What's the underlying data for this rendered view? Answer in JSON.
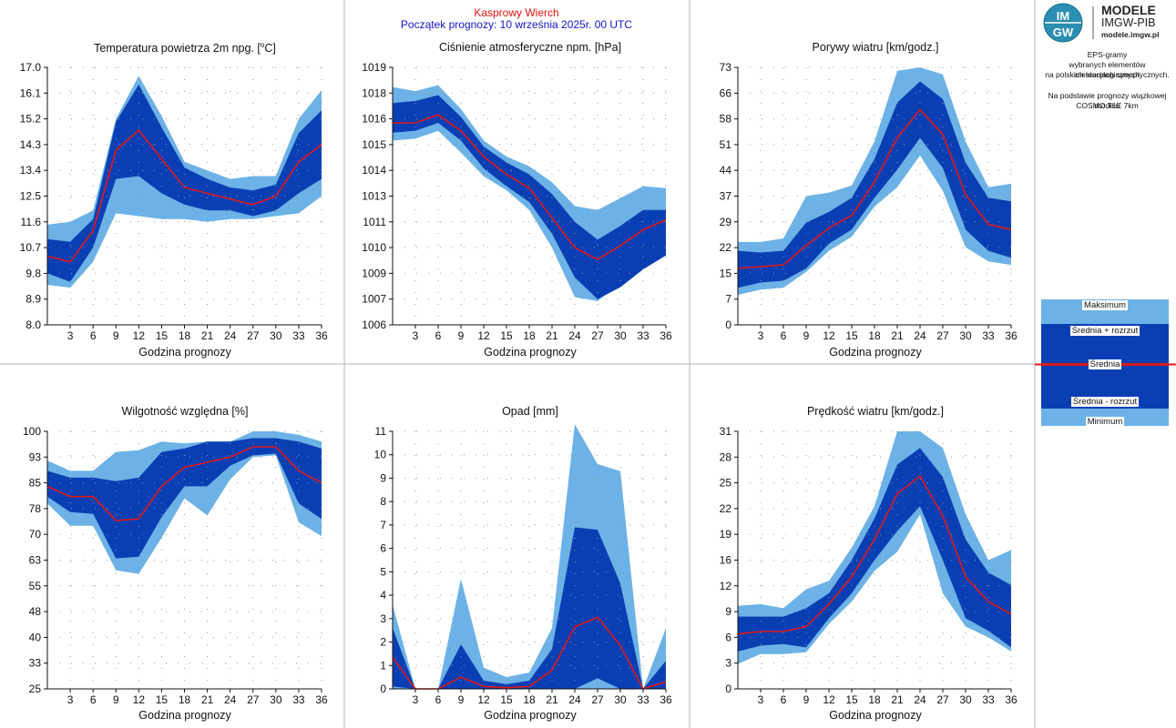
{
  "header": {
    "station": "Kasprowy Wierch",
    "forecast_start": "Początek prognozy: 10 września 2025r. 00 UTC"
  },
  "logo": {
    "brand": "IMGW",
    "line1": "MODELE",
    "line2": "IMGW-PIB",
    "url": "modele.imgw.pl"
  },
  "description": {
    "line1": "EPS-gramy",
    "line2": "wybranych elementów meteorologicznych",
    "line3": "na polskich stacjach synoptycznych.",
    "line4": "Na podstawie prognozy wiązkowej modelu",
    "line5": "COSMO TLE 7km"
  },
  "legend": {
    "max": "Maksimum",
    "mean_plus": "Średnia + rozrzut",
    "mean": "Średnia",
    "mean_minus": "Średnia - rozrzut",
    "min": "Minimum"
  },
  "colors": {
    "outer_band": "#6cb2e6",
    "inner_band": "#0a3fb4",
    "mean_line": "#e01818",
    "grid_dots": "#9a9a9a",
    "panel_border": "#b4b4b4"
  },
  "chart_data": [
    {
      "type": "area",
      "title": "Temperatura powietrza 2m npg. [°C]",
      "title_main": "Temperatura powietrza 2m npg. [",
      "title_sup": "o",
      "title_tail": "C]",
      "xlabel": "Godzina prognozy",
      "x": [
        0,
        3,
        6,
        9,
        12,
        15,
        18,
        21,
        24,
        27,
        30,
        33,
        36
      ],
      "xticks": [
        3,
        6,
        9,
        12,
        15,
        18,
        21,
        24,
        27,
        30,
        33,
        36
      ],
      "ylim": [
        8.0,
        17.0
      ],
      "yticks": [
        "8.0",
        "8.9",
        "9.8",
        "10.7",
        "11.6",
        "12.5",
        "13.4",
        "14.3",
        "15.2",
        "16.1",
        "17.0"
      ],
      "series": [
        {
          "name": "Maksimum",
          "values": [
            11.5,
            11.6,
            12.0,
            15.2,
            16.7,
            15.3,
            13.7,
            13.4,
            13.1,
            13.2,
            13.2,
            15.2,
            16.2
          ]
        },
        {
          "name": "Średnia + rozrzut",
          "values": [
            11.0,
            10.9,
            11.7,
            15.1,
            16.4,
            14.9,
            13.5,
            13.1,
            12.8,
            12.7,
            12.9,
            14.7,
            15.5
          ]
        },
        {
          "name": "Średnia",
          "values": [
            10.4,
            10.2,
            11.3,
            14.1,
            14.8,
            13.8,
            12.8,
            12.6,
            12.4,
            12.2,
            12.5,
            13.7,
            14.3
          ]
        },
        {
          "name": "Średnia - rozrzut",
          "values": [
            9.8,
            9.5,
            10.7,
            13.1,
            13.2,
            12.6,
            12.2,
            12.0,
            12.0,
            11.8,
            12.0,
            12.6,
            13.1
          ]
        },
        {
          "name": "Minimum",
          "values": [
            9.4,
            9.3,
            10.2,
            11.9,
            11.8,
            11.7,
            11.7,
            11.6,
            11.7,
            11.7,
            11.8,
            11.9,
            12.5
          ]
        }
      ]
    },
    {
      "type": "area",
      "title": "Ciśnienie atmosferyczne npm. [hPa]",
      "xlabel": "Godzina prognozy",
      "x": [
        0,
        3,
        6,
        9,
        12,
        15,
        18,
        21,
        24,
        27,
        30,
        33,
        36
      ],
      "xticks": [
        3,
        6,
        9,
        12,
        15,
        18,
        21,
        24,
        27,
        30,
        33,
        36
      ],
      "ylim": [
        1006,
        1019
      ],
      "yticks": [
        "1006",
        "1007",
        "1009",
        "1010",
        "1011",
        "1013",
        "1014",
        "1015",
        "1016",
        "1018",
        "1019"
      ],
      "series": [
        {
          "name": "Maksimum",
          "values": [
            1018.0,
            1017.8,
            1018.1,
            1016.9,
            1015.3,
            1014.5,
            1014.0,
            1013.2,
            1012.0,
            1011.8,
            1012.4,
            1013.0,
            1012.9
          ]
        },
        {
          "name": "Średnia + rozrzut",
          "values": [
            1017.2,
            1017.3,
            1017.6,
            1016.5,
            1015.0,
            1014.2,
            1013.6,
            1012.6,
            1011.2,
            1010.3,
            1011.0,
            1011.8,
            1011.8
          ]
        },
        {
          "name": "Średnia",
          "values": [
            1016.2,
            1016.2,
            1016.6,
            1015.8,
            1014.5,
            1013.6,
            1012.9,
            1011.4,
            1009.9,
            1009.3,
            1010.0,
            1010.8,
            1011.3
          ]
        },
        {
          "name": "Średnia - rozrzut",
          "values": [
            1015.7,
            1015.8,
            1016.2,
            1015.3,
            1013.9,
            1013.0,
            1012.2,
            1010.6,
            1008.4,
            1007.3,
            1007.9,
            1008.8,
            1009.5
          ]
        },
        {
          "name": "Minimum",
          "values": [
            1015.3,
            1015.4,
            1015.8,
            1014.7,
            1013.5,
            1012.8,
            1011.8,
            1009.9,
            1007.4,
            1007.2,
            1008.1,
            1009.3,
            1010.4
          ]
        }
      ]
    },
    {
      "type": "area",
      "title": "Porywy wiatru [km/godz.]",
      "xlabel": "Godzina prognozy",
      "x": [
        0,
        3,
        6,
        9,
        12,
        15,
        18,
        21,
        24,
        27,
        30,
        33,
        36
      ],
      "xticks": [
        3,
        6,
        9,
        12,
        15,
        18,
        21,
        24,
        27,
        30,
        33,
        36
      ],
      "ylim": [
        0,
        73
      ],
      "yticks": [
        "0",
        "7",
        "15",
        "22",
        "29",
        "37",
        "44",
        "51",
        "58",
        "66",
        "73"
      ],
      "series": [
        {
          "name": "Maksimum",
          "values": [
            23.5,
            23.5,
            24.5,
            36.5,
            37.5,
            39.5,
            52,
            72,
            73,
            71,
            52,
            39,
            40
          ]
        },
        {
          "name": "Średnia + rozrzut",
          "values": [
            21,
            20.5,
            21,
            29,
            32,
            36,
            47,
            63,
            69,
            64,
            46,
            36,
            35
          ]
        },
        {
          "name": "Średnia",
          "values": [
            16,
            16.5,
            17,
            22.5,
            27.5,
            31,
            40.5,
            53,
            61,
            54,
            37,
            28.5,
            27
          ]
        },
        {
          "name": "Średnia - rozrzut",
          "values": [
            10.5,
            12,
            12.5,
            16,
            23,
            27,
            36,
            44,
            53,
            44.5,
            27,
            21,
            19
          ]
        },
        {
          "name": "Minimum",
          "values": [
            8.5,
            10,
            10.5,
            15,
            21,
            25,
            33.5,
            39,
            48,
            38,
            22,
            18,
            17
          ]
        }
      ]
    },
    {
      "type": "area",
      "title": "Wilgotność względna [%]",
      "xlabel": "Godzina prognozy",
      "x": [
        0,
        3,
        6,
        9,
        12,
        15,
        18,
        21,
        24,
        27,
        30,
        33,
        36
      ],
      "xticks": [
        3,
        6,
        9,
        12,
        15,
        18,
        21,
        24,
        27,
        30,
        33,
        36
      ],
      "ylim": [
        25,
        100
      ],
      "yticks": [
        "25",
        "33",
        "40",
        "48",
        "55",
        "63",
        "70",
        "78",
        "85",
        "93",
        "100"
      ],
      "series": [
        {
          "name": "Maksimum",
          "values": [
            91.5,
            88.5,
            88.5,
            94,
            94.5,
            97,
            96.5,
            97,
            97,
            100,
            100,
            99,
            97
          ]
        },
        {
          "name": "Średnia + rozrzut",
          "values": [
            88.5,
            86.5,
            86.5,
            85.5,
            86.5,
            94,
            95,
            97,
            97,
            98,
            98,
            97,
            95
          ]
        },
        {
          "name": "Średnia",
          "values": [
            84,
            81,
            81,
            74,
            74.5,
            84,
            89.5,
            91,
            92.5,
            95.5,
            95.5,
            88.5,
            85
          ]
        },
        {
          "name": "Średnia - rozrzut",
          "values": [
            81,
            76.5,
            76,
            63,
            63.5,
            75,
            84,
            84,
            90,
            93,
            93.5,
            79,
            74.5
          ]
        },
        {
          "name": "Minimum",
          "values": [
            79,
            72.5,
            72.5,
            59.5,
            58.5,
            69,
            80.5,
            75.5,
            86,
            92.5,
            93,
            73.5,
            69.5
          ]
        }
      ]
    },
    {
      "type": "area",
      "title": "Opad [mm]",
      "xlabel": "Godzina prognozy",
      "x": [
        0,
        3,
        6,
        9,
        12,
        15,
        18,
        21,
        24,
        27,
        30,
        33,
        36
      ],
      "xticks": [
        3,
        6,
        9,
        12,
        15,
        18,
        21,
        24,
        27,
        30,
        33,
        36
      ],
      "ylim": [
        0,
        11
      ],
      "yticks": [
        "0",
        "1",
        "2",
        "3",
        "4",
        "5",
        "6",
        "7",
        "8",
        "9",
        "10",
        "11"
      ],
      "series": [
        {
          "name": "Maksimum",
          "values": [
            3.6,
            0,
            0,
            4.7,
            0.9,
            0.5,
            0.7,
            2.6,
            11.3,
            9.6,
            9.3,
            0,
            2.6
          ]
        },
        {
          "name": "Średnia + rozrzut",
          "values": [
            2.6,
            0,
            0,
            1.9,
            0.35,
            0.2,
            0.35,
            1.7,
            6.9,
            6.8,
            4.5,
            0,
            1.2
          ]
        },
        {
          "name": "Średnia",
          "values": [
            1.35,
            0,
            0,
            0.5,
            0.1,
            0.05,
            0.1,
            0.8,
            2.65,
            3.05,
            1.85,
            0,
            0.3
          ]
        },
        {
          "name": "Średnia - rozrzut",
          "values": [
            0.1,
            0,
            0,
            0,
            0,
            0,
            0,
            0,
            0,
            0.45,
            0,
            0,
            0
          ]
        },
        {
          "name": "Minimum",
          "values": [
            0,
            0,
            0,
            0,
            0,
            0,
            0,
            0,
            0,
            0,
            0,
            0,
            0
          ]
        }
      ]
    },
    {
      "type": "area",
      "title": "Prędkość wiatru [km/godz.]",
      "xlabel": "Godzina prognozy",
      "x": [
        0,
        3,
        6,
        9,
        12,
        15,
        18,
        21,
        24,
        27,
        30,
        33,
        36
      ],
      "xticks": [
        3,
        6,
        9,
        12,
        15,
        18,
        21,
        24,
        27,
        30,
        33,
        36
      ],
      "ylim": [
        0,
        31
      ],
      "yticks": [
        "0",
        "3",
        "6",
        "9",
        "12",
        "16",
        "19",
        "22",
        "25",
        "28",
        "31"
      ],
      "series": [
        {
          "name": "Maksimum",
          "values": [
            10,
            10.2,
            9.7,
            12,
            13,
            17,
            22,
            31,
            31,
            29,
            21,
            15.5,
            16.7
          ]
        },
        {
          "name": "Średnia + rozrzut",
          "values": [
            8.7,
            8.7,
            8.7,
            9.7,
            11.5,
            15.5,
            20.5,
            27,
            29,
            25.5,
            18,
            14,
            12.5
          ]
        },
        {
          "name": "Średnia",
          "values": [
            6.6,
            6.9,
            6.9,
            7.5,
            10.2,
            13.5,
            18,
            23.5,
            25.6,
            20.8,
            13.5,
            10.5,
            9
          ]
        },
        {
          "name": "Średnia - rozrzut",
          "values": [
            4.5,
            5.2,
            5.4,
            5,
            8.5,
            11.5,
            15.5,
            19,
            22,
            15.5,
            8.5,
            7,
            5
          ]
        },
        {
          "name": "Minimum",
          "values": [
            3,
            4.2,
            4.2,
            4.4,
            7.8,
            10.5,
            14.2,
            16.5,
            21,
            11.5,
            7.5,
            6.2,
            4.5
          ]
        }
      ]
    }
  ]
}
